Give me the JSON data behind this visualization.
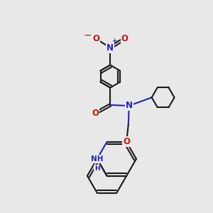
{
  "bg_color": "#e8e8e8",
  "bond_color": "#1a1a1a",
  "N_color": "#2222bb",
  "O_color": "#cc1111",
  "lw": 1.5,
  "dbo": 0.032,
  "fs": 8.5,
  "xlim": [
    0.2,
    5.8
  ],
  "ylim": [
    0.2,
    5.8
  ]
}
